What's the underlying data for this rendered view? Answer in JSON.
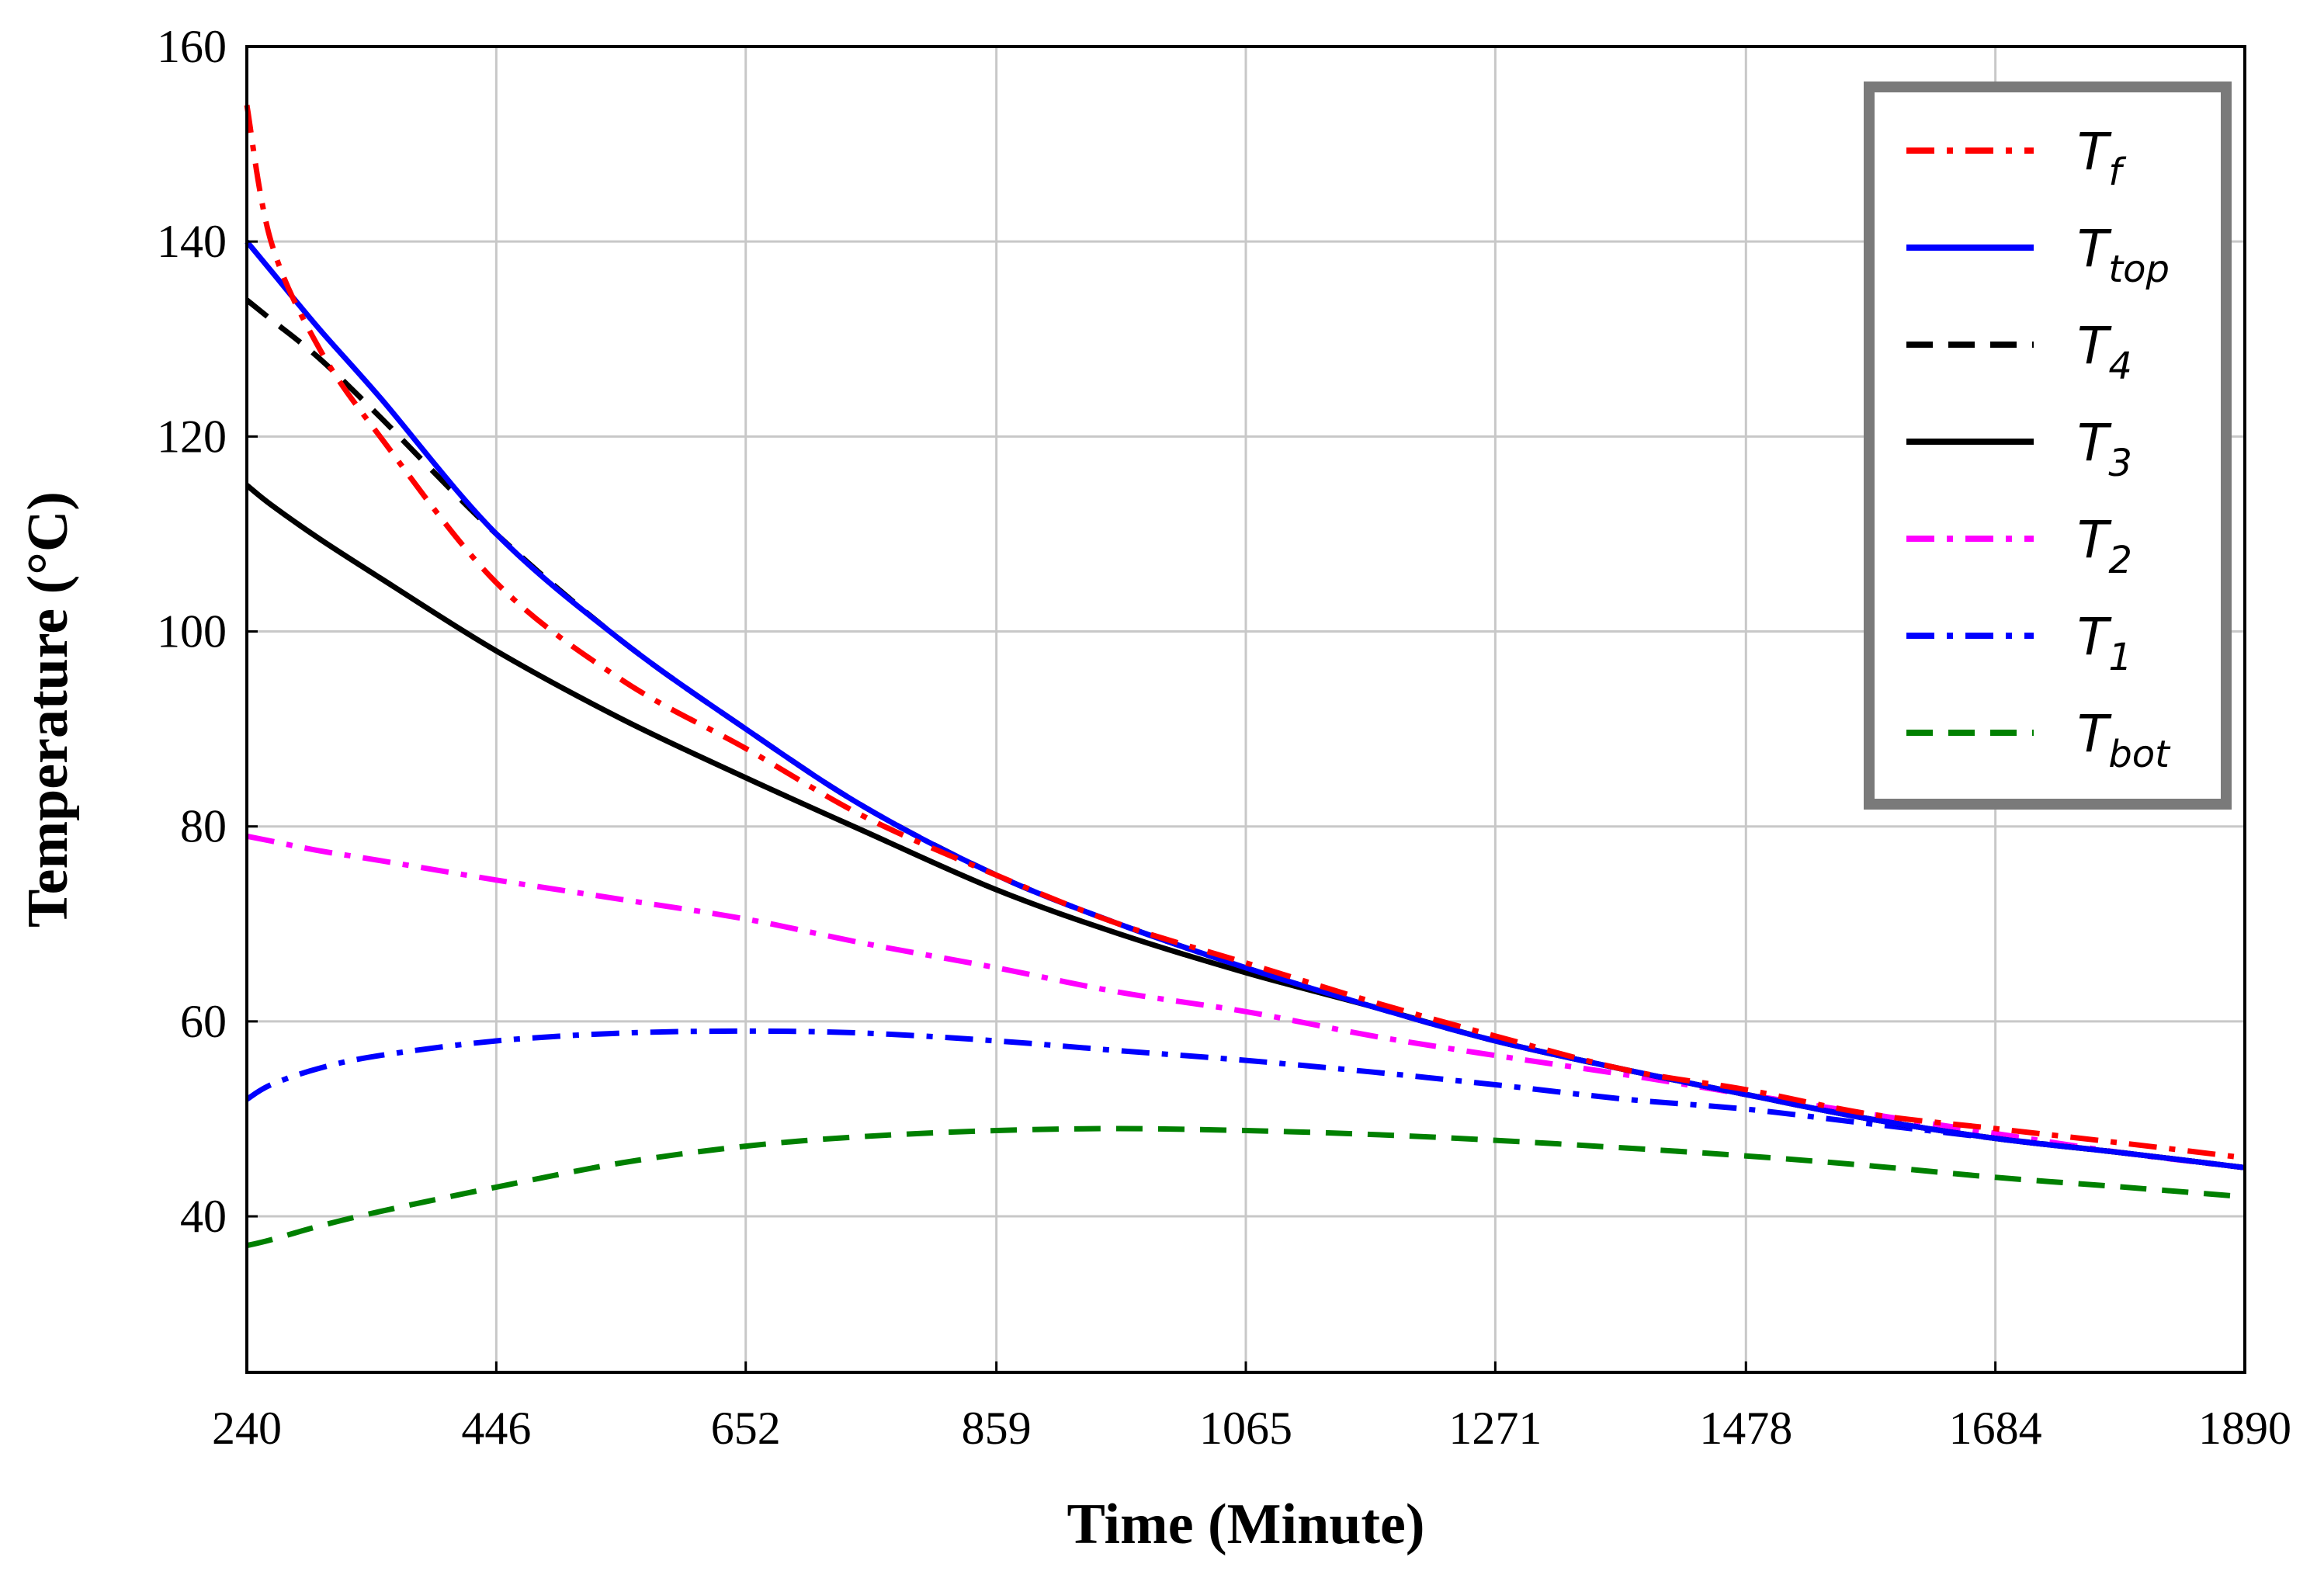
{
  "chart_data": {
    "type": "line",
    "xlabel": "Time (Minute)",
    "ylabel": "Temperature (°C)",
    "xlim": [
      240,
      1890
    ],
    "ylim": [
      24,
      160
    ],
    "x_ticks": [
      240,
      446,
      652,
      859,
      1065,
      1271,
      1478,
      1684,
      1890
    ],
    "y_ticks": [
      40,
      60,
      80,
      100,
      120,
      140,
      160
    ],
    "grid": true,
    "legend_position": "top-right",
    "x": [
      240,
      260,
      300,
      350,
      446,
      550,
      652,
      750,
      859,
      960,
      1065,
      1170,
      1271,
      1380,
      1478,
      1580,
      1684,
      1790,
      1890
    ],
    "series": [
      {
        "name": "T",
        "sub": "f",
        "color": "#ff0000",
        "dash": "dashdot",
        "values": [
          154,
          140,
          129,
          120,
          105,
          95,
          88,
          81,
          75,
          70,
          66,
          62,
          58.5,
          55,
          53,
          50.5,
          49,
          47.5,
          46
        ]
      },
      {
        "name": "T",
        "sub": "top",
        "color": "#0000ff",
        "dash": "solid",
        "values": [
          140,
          137,
          131,
          124,
          110,
          99,
          90,
          82,
          75,
          70,
          65.5,
          61.5,
          58,
          55,
          52.5,
          50,
          48,
          46.5,
          45
        ]
      },
      {
        "name": "T",
        "sub": "4",
        "color": "#000000",
        "dash": "dashed",
        "values": [
          134,
          132,
          128,
          122,
          110,
          99,
          90,
          82,
          75,
          70,
          65.5,
          61.5,
          58,
          55,
          52.5,
          50,
          48,
          46.5,
          45
        ]
      },
      {
        "name": "T",
        "sub": "3",
        "color": "#000000",
        "dash": "solid",
        "values": [
          115,
          113,
          109.5,
          105.5,
          98,
          91,
          85,
          79.5,
          73.5,
          69,
          65,
          61.5,
          58,
          55,
          52.5,
          50,
          48,
          46.5,
          45
        ]
      },
      {
        "name": "T",
        "sub": "2",
        "color": "#ff00ff",
        "dash": "dashdot",
        "values": [
          79,
          78.5,
          77.5,
          76.5,
          74.5,
          72.5,
          70.5,
          68,
          65.5,
          63,
          61,
          58.5,
          56.5,
          54.5,
          52.5,
          50.5,
          48.5,
          46.5,
          45
        ]
      },
      {
        "name": "T",
        "sub": "1",
        "color": "#0000ff",
        "dash": "dashdot",
        "values": [
          52,
          53.5,
          55.2,
          56.5,
          58,
          58.8,
          59,
          58.8,
          58,
          57,
          56,
          54.8,
          53.5,
          52,
          51,
          49.5,
          48,
          46.5,
          45
        ]
      },
      {
        "name": "T",
        "sub": "bot",
        "color": "#008000",
        "dash": "dashed",
        "values": [
          37,
          37.6,
          39,
          40.5,
          43,
          45.5,
          47.2,
          48.2,
          48.8,
          49,
          48.8,
          48.4,
          47.8,
          47,
          46.2,
          45.2,
          44,
          43,
          42
        ]
      }
    ]
  }
}
